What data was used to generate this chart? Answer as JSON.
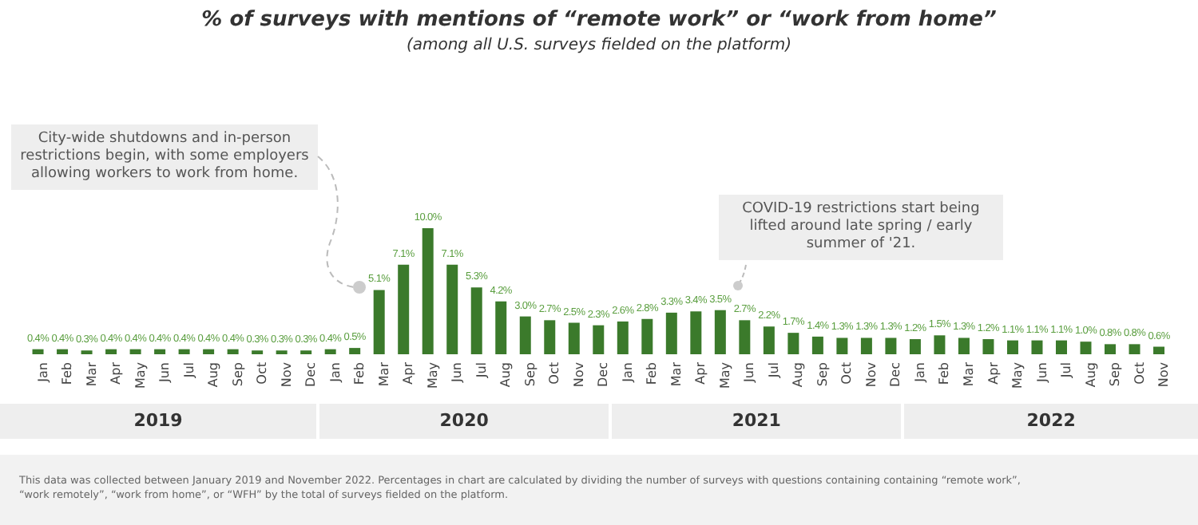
{
  "chart_data": {
    "type": "bar",
    "title": "% of surveys with mentions of “remote work” or “work from home”",
    "subtitle": "(among all U.S. surveys fielded on the platform)",
    "categories": [
      "Jan",
      "Feb",
      "Mar",
      "Apr",
      "May",
      "Jun",
      "Jul",
      "Aug",
      "Sep",
      "Oct",
      "Nov",
      "Dec",
      "Jan",
      "Feb",
      "Mar",
      "Apr",
      "May",
      "Jun",
      "Jul",
      "Aug",
      "Sep",
      "Oct",
      "Nov",
      "Dec",
      "Jan",
      "Feb",
      "Mar",
      "Apr",
      "May",
      "Jun",
      "Jul",
      "Aug",
      "Sep",
      "Oct",
      "Nov",
      "Dec",
      "Jan",
      "Feb",
      "Mar",
      "Apr",
      "May",
      "Jun",
      "Jul",
      "Aug",
      "Sep",
      "Oct",
      "Nov"
    ],
    "values": [
      0.4,
      0.4,
      0.3,
      0.4,
      0.4,
      0.4,
      0.4,
      0.4,
      0.4,
      0.3,
      0.3,
      0.3,
      0.4,
      0.5,
      5.1,
      7.1,
      10.0,
      7.1,
      5.3,
      4.2,
      3.0,
      2.7,
      2.5,
      2.3,
      2.6,
      2.8,
      3.3,
      3.4,
      3.5,
      2.7,
      2.2,
      1.7,
      1.4,
      1.3,
      1.3,
      1.3,
      1.2,
      1.5,
      1.3,
      1.2,
      1.1,
      1.1,
      1.1,
      1.0,
      0.8,
      0.8,
      0.6
    ],
    "value_labels": [
      "0.4%",
      "0.4%",
      "0.3%",
      "0.4%",
      "0.4%",
      "0.4%",
      "0.4%",
      "0.4%",
      "0.4%",
      "0.3%",
      "0.3%",
      "0.3%",
      "0.4%",
      "0.5%",
      "5.1%",
      "7.1%",
      "10.0%",
      "7.1%",
      "5.3%",
      "4.2%",
      "3.0%",
      "2.7%",
      "2.5%",
      "2.3%",
      "2.6%",
      "2.8%",
      "3.3%",
      "3.4%",
      "3.5%",
      "2.7%",
      "2.2%",
      "1.7%",
      "1.4%",
      "1.3%",
      "1.3%",
      "1.3%",
      "1.2%",
      "1.5%",
      "1.3%",
      "1.2%",
      "1.1%",
      "1.1%",
      "1.1%",
      "1.0%",
      "0.8%",
      "0.8%",
      "0.6%"
    ],
    "color": "#3b7a2b",
    "annotations": [
      "City-wide shutdowns and in-person restrictions begin, with some employers allowing workers to work from home.",
      "COVID-19 restrictions start being lifted around late spring / early summer of '21.",
      "2019",
      "2020",
      "2021",
      "2022",
      "This data was collected between January 2019 and November 2022. Percentages in chart are calculated by dividing the number of surveys with questions containing containing “remote work”, “work remotely”, “work from home”, or “WFH” by the total of surveys fielded on the platform."
    ]
  }
}
